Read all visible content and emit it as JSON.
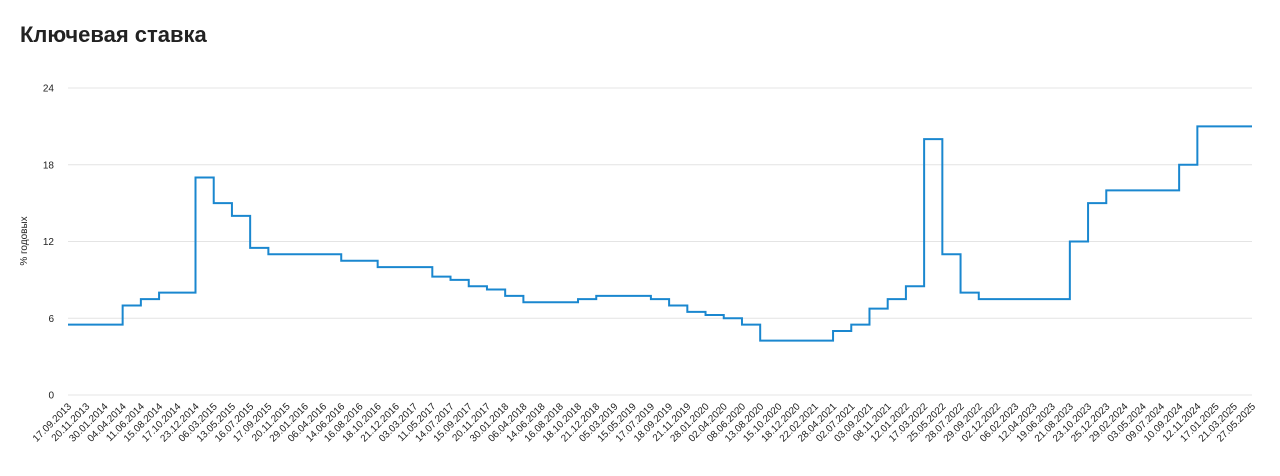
{
  "chart_data": {
    "type": "line",
    "step": true,
    "title": "Ключевая ставка",
    "y_label": "% годовых",
    "categories": [
      "17.09.2013",
      "20.11.2013",
      "30.01.2014",
      "04.04.2014",
      "11.06.2014",
      "15.08.2014",
      "17.10.2014",
      "23.12.2014",
      "06.03.2015",
      "13.05.2015",
      "16.07.2015",
      "17.09.2015",
      "20.11.2015",
      "29.01.2016",
      "06.04.2016",
      "14.06.2016",
      "16.08.2016",
      "18.10.2016",
      "21.12.2016",
      "03.03.2017",
      "11.05.2017",
      "14.07.2017",
      "15.09.2017",
      "20.11.2017",
      "30.01.2018",
      "06.04.2018",
      "14.06.2018",
      "16.08.2018",
      "18.10.2018",
      "21.12.2018",
      "05.03.2019",
      "15.05.2019",
      "17.07.2019",
      "18.09.2019",
      "21.11.2019",
      "28.01.2020",
      "02.04.2020",
      "08.06.2020",
      "13.08.2020",
      "15.10.2020",
      "18.12.2020",
      "22.02.2021",
      "28.04.2021",
      "02.07.2021",
      "03.09.2021",
      "08.11.2021",
      "12.01.2022",
      "17.03.2022",
      "25.05.2022",
      "28.07.2022",
      "29.09.2022",
      "02.12.2022",
      "06.02.2023",
      "12.04.2023",
      "19.06.2023",
      "21.08.2023",
      "23.10.2023",
      "25.12.2023",
      "29.02.2024",
      "03.05.2024",
      "09.07.2024",
      "10.09.2024",
      "12.11.2024",
      "17.01.2025",
      "21.03.2025",
      "27.05.2025"
    ],
    "series": [
      {
        "name": "Ключевая ставка",
        "color": "#1a87cf",
        "values": [
          5.5,
          5.5,
          5.5,
          7,
          7.5,
          8,
          8,
          17,
          15,
          14,
          11.5,
          11,
          11,
          11,
          11,
          10.5,
          10.5,
          10,
          10,
          10,
          9.25,
          9,
          8.5,
          8.25,
          7.75,
          7.25,
          7.25,
          7.25,
          7.5,
          7.75,
          7.75,
          7.75,
          7.5,
          7,
          6.5,
          6.25,
          6,
          5.5,
          4.25,
          4.25,
          4.25,
          4.25,
          5,
          5.5,
          6.75,
          7.5,
          8.5,
          20,
          11,
          8,
          7.5,
          7.5,
          7.5,
          7.5,
          7.5,
          12,
          15,
          16,
          16,
          16,
          16,
          18,
          21,
          21,
          21,
          21
        ]
      }
    ],
    "ylim": [
      0,
      24
    ],
    "yticks": [
      0,
      6,
      12,
      18,
      24
    ],
    "grid": true
  }
}
